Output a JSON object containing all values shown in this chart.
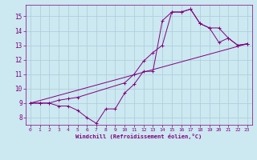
{
  "xlabel": "Windchill (Refroidissement éolien,°C)",
  "bg_color": "#cce8f0",
  "grid_color": "#aaccd8",
  "line_color": "#800080",
  "xlim": [
    -0.5,
    23.5
  ],
  "ylim": [
    7.5,
    15.8
  ],
  "xticks": [
    0,
    1,
    2,
    3,
    4,
    5,
    6,
    7,
    8,
    9,
    10,
    11,
    12,
    13,
    14,
    15,
    16,
    17,
    18,
    19,
    20,
    21,
    22,
    23
  ],
  "yticks": [
    8,
    9,
    10,
    11,
    12,
    13,
    14,
    15
  ],
  "line1_x": [
    0,
    1,
    2,
    3,
    4,
    5,
    10,
    11,
    12,
    13,
    14,
    15,
    16,
    17,
    18,
    19,
    20,
    21,
    22,
    23
  ],
  "line1_y": [
    9.0,
    9.0,
    9.0,
    9.2,
    9.3,
    9.4,
    10.4,
    11.0,
    11.9,
    12.5,
    13.0,
    15.3,
    15.3,
    15.5,
    14.5,
    14.2,
    13.2,
    13.5,
    13.0,
    13.1
  ],
  "line2_x": [
    0,
    1,
    2,
    3,
    4,
    5,
    6,
    7,
    8,
    9,
    10,
    11,
    12,
    13,
    14,
    15,
    16,
    17,
    18,
    19,
    20,
    21,
    22,
    23
  ],
  "line2_y": [
    9.0,
    9.0,
    9.0,
    8.8,
    8.8,
    8.5,
    8.0,
    7.6,
    8.6,
    8.6,
    9.7,
    10.3,
    11.2,
    11.2,
    14.7,
    15.3,
    15.3,
    15.5,
    14.5,
    14.2,
    14.2,
    13.5,
    13.0,
    13.1
  ],
  "line3_x": [
    0,
    23
  ],
  "line3_y": [
    9.0,
    13.1
  ]
}
